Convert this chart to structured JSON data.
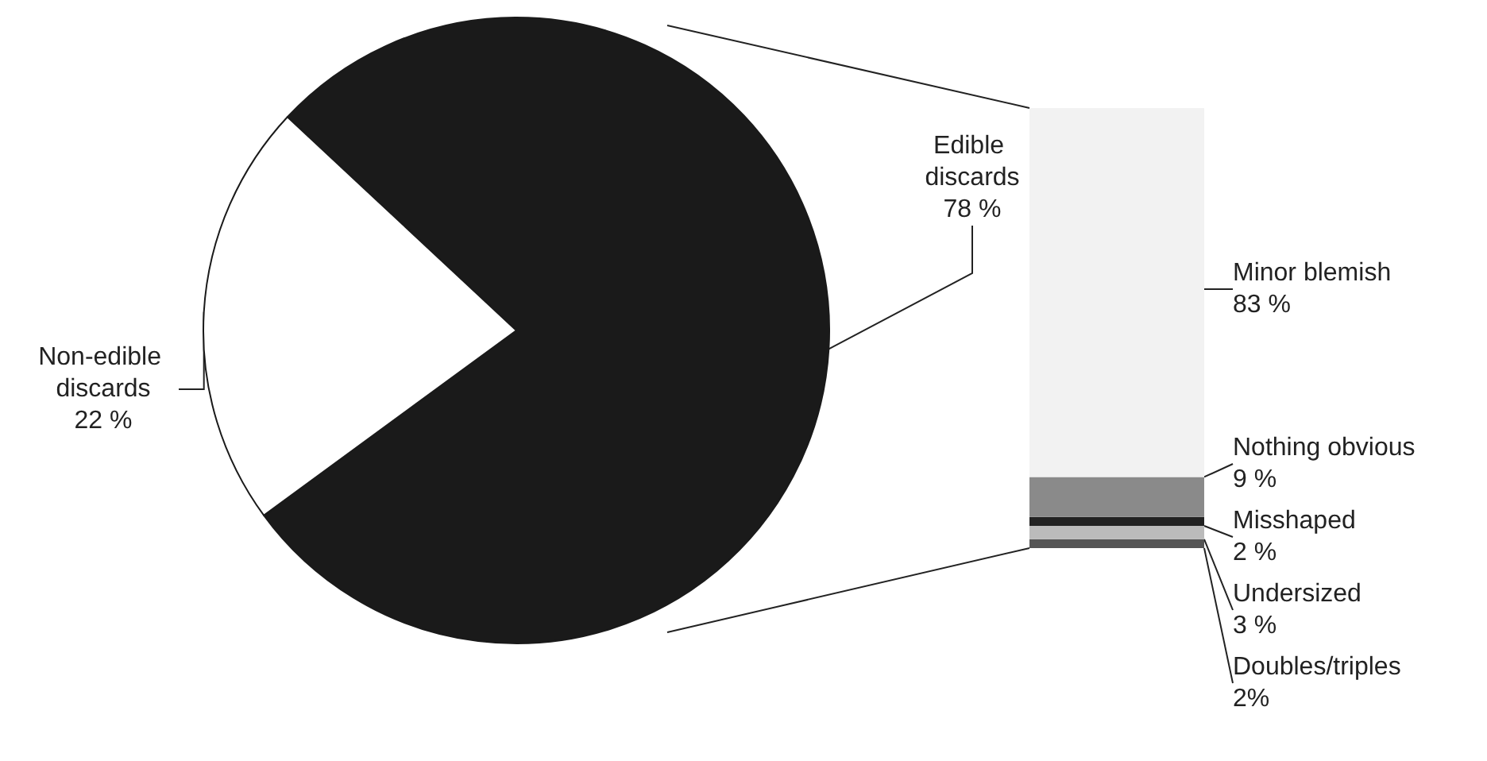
{
  "chart_data": [
    {
      "type": "pie",
      "categories": [
        "Edible discards",
        "Non-edible discards"
      ],
      "values": [
        78,
        22
      ],
      "colors": [
        "#1a1a1a",
        "#ffffff"
      ],
      "value_labels": [
        "78 %",
        "22 %"
      ]
    },
    {
      "type": "bar",
      "stacked": true,
      "categories": [
        null
      ],
      "series": [
        {
          "name": "Doubles/triples",
          "color": "#555555",
          "values": [
            2
          ],
          "value_labels": [
            "2%"
          ]
        },
        {
          "name": "Undersized",
          "color": "#bbbbbb",
          "values": [
            3
          ],
          "value_labels": [
            "3 %"
          ]
        },
        {
          "name": "Misshaped",
          "color": "#222222",
          "values": [
            2
          ],
          "value_labels": [
            "2 %"
          ]
        },
        {
          "name": "Nothing obvious",
          "color": "#8a8a8a",
          "values": [
            9
          ],
          "value_labels": [
            "9 %"
          ]
        },
        {
          "name": "Minor blemish",
          "color": "#f2f2f2",
          "values": [
            83
          ],
          "value_labels": [
            "83 %"
          ]
        }
      ]
    }
  ]
}
